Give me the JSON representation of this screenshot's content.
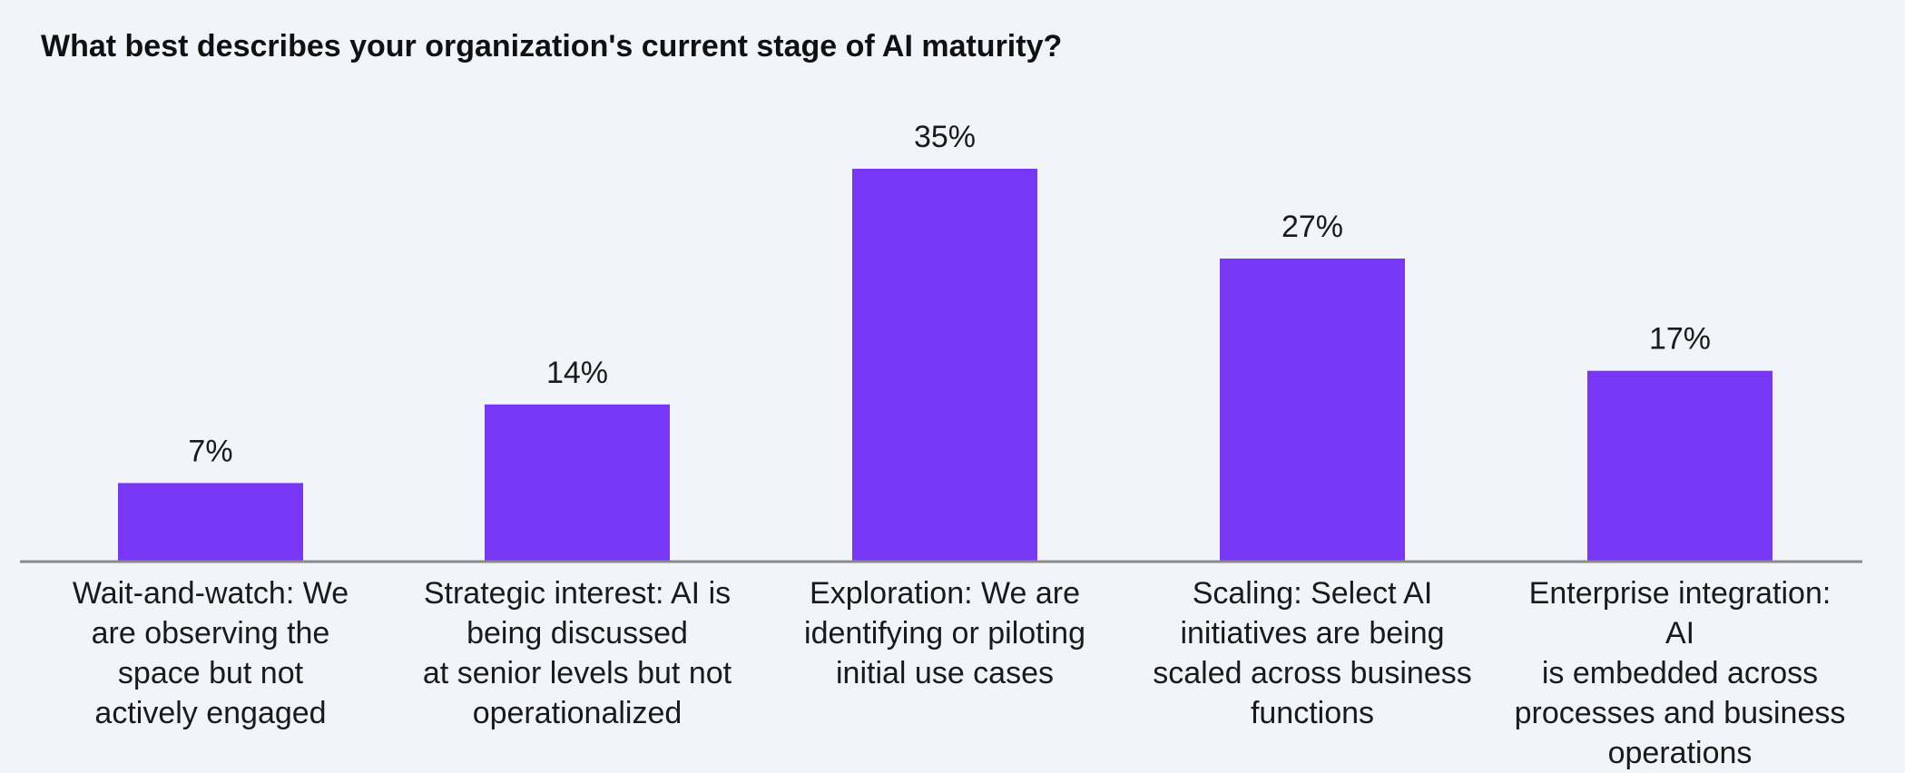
{
  "chart_data": {
    "type": "bar",
    "title": "What best describes your organization's current stage of AI maturity?",
    "categories": [
      "Wait-and-watch: We\nare observing the\nspace but not\nactively engaged",
      "Strategic interest: AI is\nbeing discussed\nat senior levels but not\noperationalized",
      "Exploration: We are\nidentifying or piloting\ninitial use cases",
      "Scaling: Select AI\ninitiatives are being\nscaled across business\nfunctions",
      "Enterprise integration: AI\nis embedded across\nprocesses and business\noperations"
    ],
    "values": [
      7,
      14,
      35,
      27,
      17
    ],
    "data_labels": [
      "7%",
      "14%",
      "35%",
      "27%",
      "17%"
    ],
    "unit": "%",
    "ylim": [
      0,
      35
    ],
    "grid": false,
    "legend": "none",
    "colors": {
      "bar": "#7737f5",
      "axis": "#8a8a8a",
      "background": "#f1f5f9",
      "text": "#1a1a1a"
    }
  }
}
